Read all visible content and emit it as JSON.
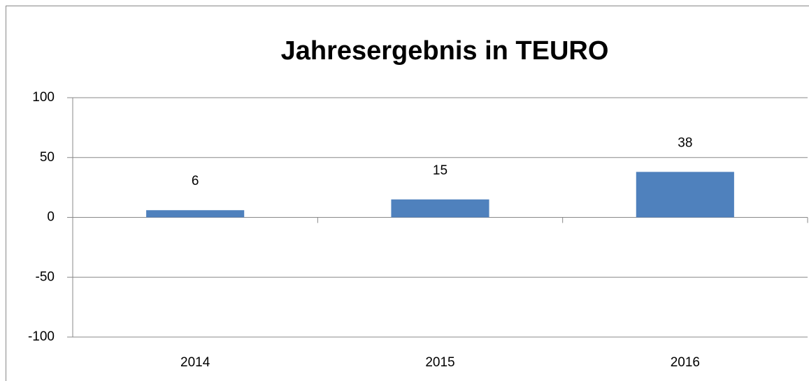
{
  "chart_data": {
    "type": "bar",
    "title": "Jahresergebnis in TEURO",
    "categories": [
      "2014",
      "2015",
      "2016"
    ],
    "values": [
      6,
      15,
      38
    ],
    "color": "#4f81bd",
    "ylim": [
      -100,
      100
    ],
    "yticks": [
      -100,
      -50,
      0,
      50,
      100
    ],
    "grid": true
  }
}
